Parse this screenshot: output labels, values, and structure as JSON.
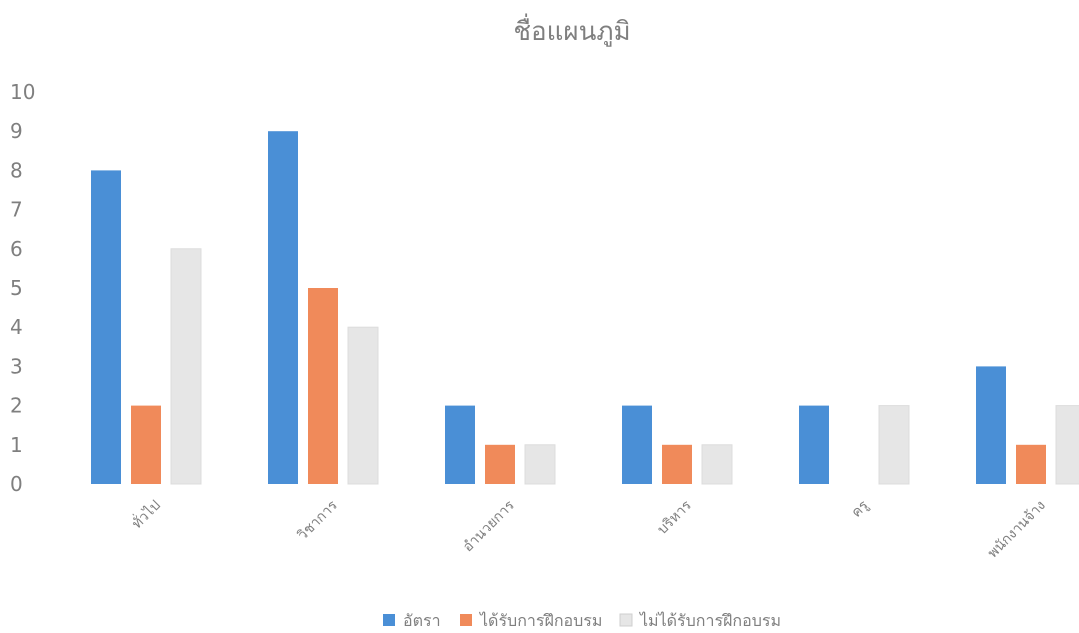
{
  "chart_data": {
    "type": "bar",
    "title": "ชื่อแผนภูมิ",
    "categories": [
      "ทั่วไป",
      "วิชาการ",
      "อำนวยการ",
      "บริหาร",
      "ครู",
      "พนักงานจ้าง"
    ],
    "series": [
      {
        "name": "อัตรา",
        "values": [
          8,
          9,
          2,
          2,
          2,
          3
        ],
        "color": "#4a8fd6"
      },
      {
        "name": "ได้รับการฝึกอบรม",
        "values": [
          2,
          5,
          1,
          1,
          0,
          1
        ],
        "color": "#f08a5a"
      },
      {
        "name": "ไม่ได้รับการฝึกอบรม",
        "values": [
          6,
          4,
          1,
          1,
          2,
          2
        ],
        "color": "#e6e6e6"
      }
    ],
    "ylim": [
      0,
      10
    ],
    "yticks": [
      "0",
      "1",
      "2",
      "3",
      "4",
      "5",
      "6",
      "7",
      "8",
      "9",
      "10"
    ],
    "xlabel": "",
    "ylabel": "",
    "grid": false,
    "legend_position": "bottom"
  }
}
